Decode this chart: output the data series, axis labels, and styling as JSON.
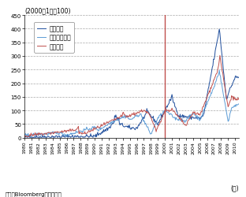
{
  "ylabel_text": "(2000年1月＝100)",
  "xlabel_text": "(年)",
  "source_text": "資料：Bloombergから作成。",
  "legend_labels": [
    "上海総合",
    "シンガポール",
    "ハンセン"
  ],
  "line_colors": [
    "#1f4e9c",
    "#5b9bd5",
    "#c0504d"
  ],
  "vline_color": "#c0504d",
  "vline_x": 2000.0,
  "ylim": [
    0,
    450
  ],
  "yticks": [
    0,
    50,
    100,
    150,
    200,
    250,
    300,
    350,
    400,
    450
  ],
  "xlim_start": 1980,
  "xlim_end": 2010.5,
  "bg_color": "#ffffff",
  "grid_color": "#aaaaaa",
  "figsize": [
    3.12,
    2.51
  ],
  "dpi": 100
}
